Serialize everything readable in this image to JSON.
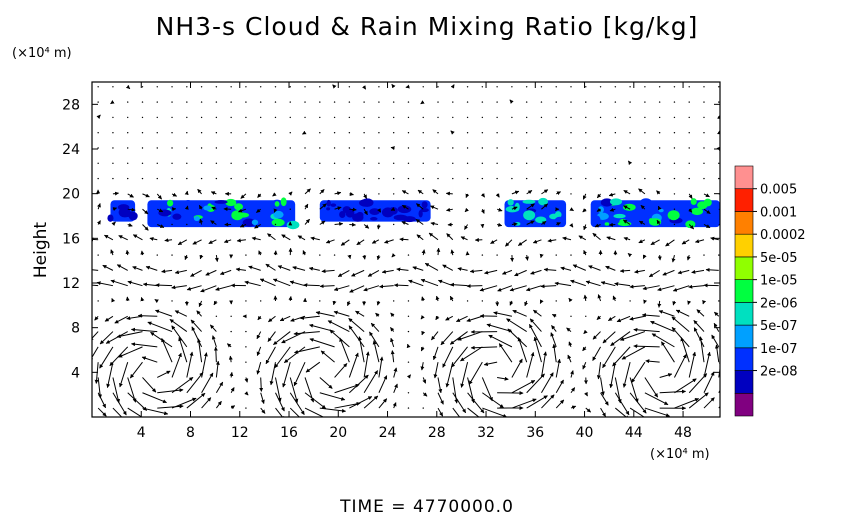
{
  "title": "NH3-s Cloud & Rain Mixing Ratio [kg/kg]",
  "time_label": "TIME  =  4770000.0",
  "y_unit": "(×10⁴ m)",
  "x_unit": "(×10⁴ m)",
  "colors": {
    "bar": [
      "#800080",
      "#0000c0",
      "#0030ff",
      "#00a0ff",
      "#00e0c0",
      "#00ff40",
      "#90ff00",
      "#ffd000",
      "#ff8000",
      "#ff2000",
      "#ff9090"
    ],
    "arrow": "#000000"
  },
  "chart_data": {
    "type": "heatmap",
    "title": "NH3-s Cloud & Rain Mixing Ratio [kg/kg]",
    "xlabel": "(×10⁴ m)",
    "ylabel": "Height",
    "xlim": [
      0,
      51
    ],
    "ylim": [
      0,
      30
    ],
    "x_ticks": [
      "4",
      "8",
      "12",
      "16",
      "20",
      "24",
      "28",
      "32",
      "36",
      "40",
      "44",
      "48"
    ],
    "y_ticks": [
      "4",
      "8",
      "12",
      "16",
      "20",
      "24",
      "28"
    ],
    "colorbar_labels": [
      "0.005",
      "0.001",
      "0.0002",
      "5e-05",
      "1e-05",
      "2e-06",
      "5e-07",
      "1e-07",
      "2e-08"
    ],
    "cloud_layer": [
      {
        "x_range": [
          1.5,
          3.5
        ],
        "y_range": [
          17.5,
          19.5
        ],
        "peak": "1e-07"
      },
      {
        "x_range": [
          4.5,
          16.5
        ],
        "y_range": [
          17.0,
          19.5
        ],
        "peak": "1e-05"
      },
      {
        "x_range": [
          18.5,
          27.5
        ],
        "y_range": [
          17.5,
          19.5
        ],
        "peak": "1e-07"
      },
      {
        "x_range": [
          33.5,
          38.5
        ],
        "y_range": [
          17.0,
          19.5
        ],
        "peak": "2e-06"
      },
      {
        "x_range": [
          40.5,
          51.0
        ],
        "y_range": [
          17.0,
          19.5
        ],
        "peak": "1e-05"
      }
    ],
    "circulation_cells_x_centers": [
      5,
      19,
      33,
      46
    ],
    "vector_field": "wind arrows on a regular grid (not printed as values)"
  }
}
